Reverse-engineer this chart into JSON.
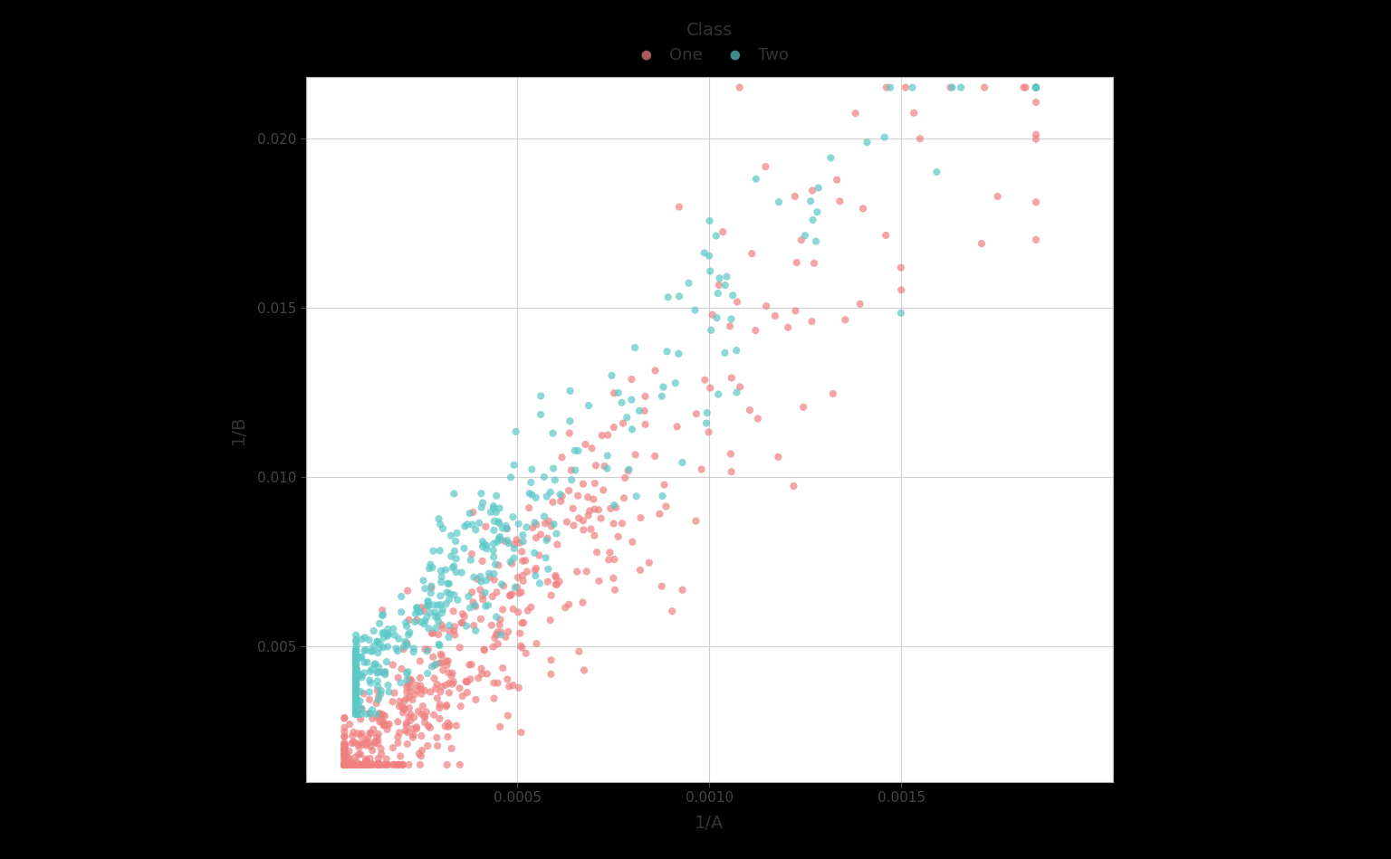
{
  "xlabel": "1/A",
  "ylabel": "1/B",
  "legend_title": "Class",
  "legend_labels": [
    "One",
    "Two"
  ],
  "color_one": "#F08080",
  "color_two": "#5BC8C8",
  "alpha": 0.7,
  "marker_size": 35,
  "plot_bg": "#FFFFFF",
  "figure_bg": "#000000",
  "grid_color": "#D0D0D0",
  "xlim": [
    -5e-05,
    0.00205
  ],
  "ylim": [
    0.001,
    0.0218
  ],
  "xticks": [
    0.0005,
    0.001,
    0.0015
  ],
  "yticks": [
    0.005,
    0.01,
    0.015,
    0.02
  ],
  "n_one": 600,
  "n_two": 400,
  "seed": 99
}
